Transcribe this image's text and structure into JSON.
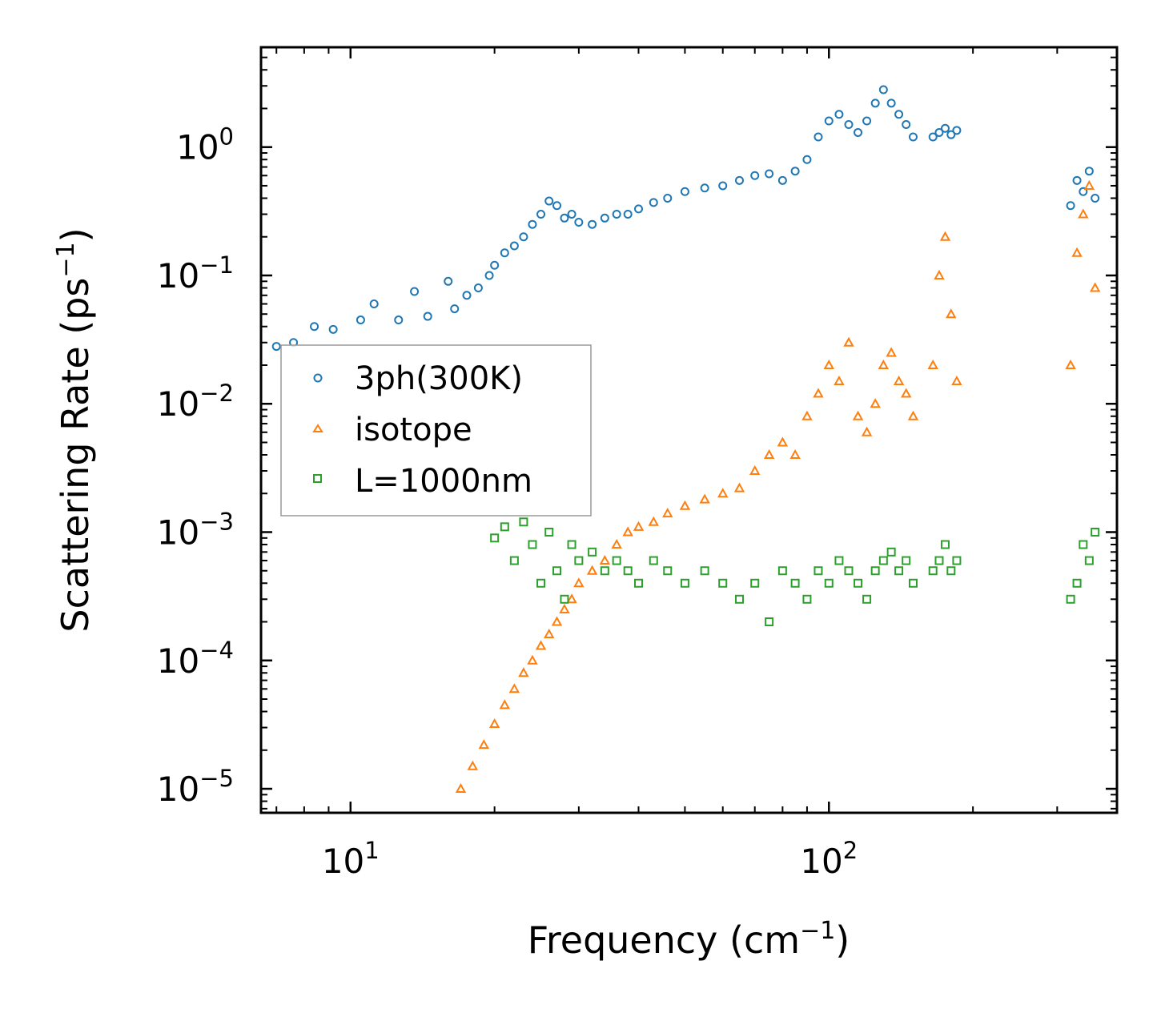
{
  "chart_data": {
    "type": "scatter",
    "title": "",
    "xlabel": "Frequency (cm",
    "xlabel_sup": "−1",
    "xlabel_end": ")",
    "ylabel": "Scattering Rate (ps",
    "ylabel_sup": "−1",
    "ylabel_end": ")",
    "xscale": "log",
    "yscale": "log",
    "xlim": [
      6.5,
      400
    ],
    "ylim": [
      6.5e-06,
      6
    ],
    "x_ticks": [
      {
        "value": 10,
        "base": "10",
        "exp": "1"
      },
      {
        "value": 100,
        "base": "10",
        "exp": "2"
      }
    ],
    "y_ticks": [
      {
        "value": 1,
        "base": "10",
        "exp": "0"
      },
      {
        "value": 0.1,
        "base": "10",
        "exp": "−1"
      },
      {
        "value": 0.01,
        "base": "10",
        "exp": "−2"
      },
      {
        "value": 0.001,
        "base": "10",
        "exp": "−3"
      },
      {
        "value": 0.0001,
        "base": "10",
        "exp": "−4"
      },
      {
        "value": 1e-05,
        "base": "10",
        "exp": "−5"
      }
    ],
    "legend_position": "center-left",
    "series": [
      {
        "name": "3ph(300K)",
        "marker": "circle",
        "color": "#1f77b4",
        "x": [
          7,
          7.6,
          8.4,
          9.2,
          10.5,
          11.2,
          12.6,
          13.6,
          14.5,
          16,
          16.5,
          17.5,
          18.5,
          19.5,
          20,
          21,
          22,
          23,
          24,
          25,
          26,
          27,
          28,
          29,
          30,
          32,
          34,
          36,
          38,
          40,
          43,
          46,
          50,
          55,
          60,
          65,
          70,
          75,
          80,
          85,
          90,
          95,
          100,
          105,
          110,
          115,
          120,
          125,
          130,
          135,
          140,
          145,
          150,
          165,
          170,
          175,
          180,
          185,
          320,
          330,
          340,
          350,
          360
        ],
        "y": [
          0.028,
          0.03,
          0.04,
          0.038,
          0.045,
          0.06,
          0.045,
          0.075,
          0.048,
          0.09,
          0.055,
          0.07,
          0.08,
          0.1,
          0.12,
          0.15,
          0.17,
          0.2,
          0.25,
          0.3,
          0.38,
          0.35,
          0.28,
          0.3,
          0.26,
          0.25,
          0.28,
          0.3,
          0.3,
          0.33,
          0.37,
          0.4,
          0.45,
          0.48,
          0.5,
          0.55,
          0.6,
          0.62,
          0.55,
          0.65,
          0.8,
          1.2,
          1.6,
          1.8,
          1.5,
          1.3,
          1.6,
          2.2,
          2.8,
          2.2,
          1.8,
          1.5,
          1.2,
          1.2,
          1.3,
          1.4,
          1.25,
          1.35,
          0.35,
          0.55,
          0.45,
          0.65,
          0.4
        ]
      },
      {
        "name": "isotope",
        "marker": "triangle",
        "color": "#ff7f0e",
        "x": [
          17,
          18,
          19,
          20,
          21,
          22,
          23,
          24,
          25,
          26,
          27,
          28,
          29,
          30,
          32,
          34,
          36,
          38,
          40,
          43,
          46,
          50,
          55,
          60,
          65,
          70,
          75,
          80,
          85,
          90,
          95,
          100,
          105,
          110,
          115,
          120,
          125,
          130,
          135,
          140,
          145,
          150,
          165,
          170,
          175,
          180,
          185,
          320,
          330,
          340,
          350,
          360
        ],
        "y": [
          1e-05,
          1.5e-05,
          2.2e-05,
          3.2e-05,
          4.5e-05,
          6e-05,
          8e-05,
          0.0001,
          0.00013,
          0.00016,
          0.0002,
          0.00025,
          0.0003,
          0.0004,
          0.0005,
          0.0006,
          0.0008,
          0.001,
          0.0011,
          0.0012,
          0.0014,
          0.0016,
          0.0018,
          0.002,
          0.0022,
          0.003,
          0.004,
          0.005,
          0.004,
          0.008,
          0.012,
          0.02,
          0.015,
          0.03,
          0.008,
          0.006,
          0.01,
          0.02,
          0.025,
          0.015,
          0.012,
          0.008,
          0.02,
          0.1,
          0.2,
          0.05,
          0.015,
          0.02,
          0.15,
          0.3,
          0.5,
          0.08
        ]
      },
      {
        "name": "L=1000nm",
        "marker": "square",
        "color": "#2ca02c",
        "x": [
          20,
          21,
          22,
          23,
          24,
          25,
          26,
          27,
          28,
          29,
          30,
          32,
          34,
          36,
          38,
          40,
          43,
          46,
          50,
          55,
          60,
          65,
          70,
          75,
          80,
          85,
          90,
          95,
          100,
          105,
          110,
          115,
          120,
          125,
          130,
          135,
          140,
          145,
          150,
          165,
          170,
          175,
          180,
          185,
          320,
          330,
          340,
          350,
          360
        ],
        "y": [
          0.0009,
          0.0011,
          0.0006,
          0.0012,
          0.0008,
          0.0004,
          0.001,
          0.0005,
          0.0003,
          0.0008,
          0.0006,
          0.0007,
          0.0005,
          0.0006,
          0.0005,
          0.0004,
          0.0006,
          0.0005,
          0.0004,
          0.0005,
          0.0004,
          0.0003,
          0.0004,
          0.0002,
          0.0005,
          0.0004,
          0.0003,
          0.0005,
          0.0004,
          0.0006,
          0.0005,
          0.0004,
          0.0003,
          0.0005,
          0.0006,
          0.0007,
          0.0005,
          0.0006,
          0.0004,
          0.0005,
          0.0006,
          0.0008,
          0.0005,
          0.0006,
          0.0003,
          0.0004,
          0.0008,
          0.0006,
          0.001
        ]
      }
    ]
  }
}
